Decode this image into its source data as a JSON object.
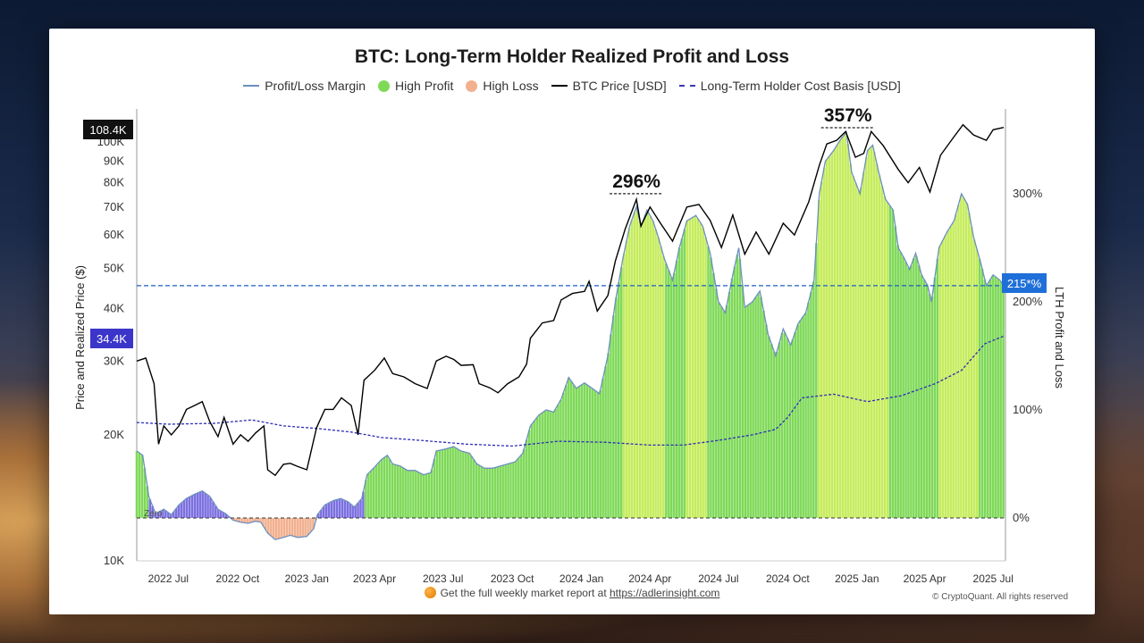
{
  "chart_data": {
    "type": "bar+line",
    "title": "BTC: Long-Term Holder Realized Profit and Loss",
    "legend": [
      "Profit/Loss Margin",
      "High Profit",
      "High Loss",
      "BTC Price [USD]",
      "Long-Term Holder Cost Basis [USD]"
    ],
    "colors": {
      "margin": "#6d8fbf",
      "high_profit": "#7ed957",
      "high_profit_light": "#c5ec5a",
      "high_loss": "#f2b08e",
      "low_margin": "#7b6fe0",
      "btc_price": "#000000",
      "cost_basis": "#2c2cb5",
      "threshold": "#1f5fbf"
    },
    "ylabel_left": "Price and Realized Price ($)",
    "ylabel_right": "LTH Profit and Loss",
    "left_scale": "log",
    "left_ylim": [
      10000,
      120000
    ],
    "left_ticks": [
      "10K",
      "20K",
      "30K",
      "40K",
      "50K",
      "60K",
      "70K",
      "80K",
      "90K",
      "100K"
    ],
    "right_ylim": [
      -35,
      375
    ],
    "right_ticks": [
      "0%",
      "100%",
      "200%",
      "300%"
    ],
    "x_ticks": [
      "2022 Jul",
      "2022 Oct",
      "2023 Jan",
      "2023 Apr",
      "2023 Jul",
      "2023 Oct",
      "2024 Jan",
      "2024 Apr",
      "2024 Jul",
      "2024 Oct",
      "2025 Jan",
      "2025 Apr",
      "2025 Jul"
    ],
    "x_range": [
      "2022-05-20",
      "2025-07-15"
    ],
    "price_badge": "108.4K",
    "cost_badge": "34.4K",
    "margin_badge": "215*%",
    "zero_label": "Zero",
    "threshold_pct": 215,
    "annotations": [
      {
        "text": "296%",
        "date": "2024-03-14",
        "value": 296
      },
      {
        "text": "357%",
        "date": "2024-12-20",
        "value": 357
      }
    ],
    "margin_series": [
      [
        "2022-05-20",
        62
      ],
      [
        "2022-05-28",
        58
      ],
      [
        "2022-06-05",
        20
      ],
      [
        "2022-06-14",
        4
      ],
      [
        "2022-06-25",
        8
      ],
      [
        "2022-07-05",
        3
      ],
      [
        "2022-07-15",
        12
      ],
      [
        "2022-07-25",
        18
      ],
      [
        "2022-08-05",
        22
      ],
      [
        "2022-08-15",
        25
      ],
      [
        "2022-08-25",
        20
      ],
      [
        "2022-09-05",
        8
      ],
      [
        "2022-09-15",
        4
      ],
      [
        "2022-09-25",
        -2
      ],
      [
        "2022-10-05",
        -4
      ],
      [
        "2022-10-15",
        -5
      ],
      [
        "2022-10-25",
        -3
      ],
      [
        "2022-11-01",
        -4
      ],
      [
        "2022-11-10",
        -14
      ],
      [
        "2022-11-20",
        -20
      ],
      [
        "2022-12-01",
        -18
      ],
      [
        "2022-12-10",
        -16
      ],
      [
        "2022-12-20",
        -18
      ],
      [
        "2023-01-01",
        -17
      ],
      [
        "2023-01-10",
        -10
      ],
      [
        "2023-01-15",
        3
      ],
      [
        "2023-01-25",
        12
      ],
      [
        "2023-02-05",
        16
      ],
      [
        "2023-02-15",
        18
      ],
      [
        "2023-02-25",
        15
      ],
      [
        "2023-03-05",
        10
      ],
      [
        "2023-03-15",
        18
      ],
      [
        "2023-03-22",
        40
      ],
      [
        "2023-04-01",
        47
      ],
      [
        "2023-04-10",
        54
      ],
      [
        "2023-04-18",
        58
      ],
      [
        "2023-04-25",
        50
      ],
      [
        "2023-05-05",
        48
      ],
      [
        "2023-05-15",
        44
      ],
      [
        "2023-05-25",
        44
      ],
      [
        "2023-06-05",
        40
      ],
      [
        "2023-06-15",
        42
      ],
      [
        "2023-06-22",
        62
      ],
      [
        "2023-07-05",
        64
      ],
      [
        "2023-07-15",
        66
      ],
      [
        "2023-07-25",
        62
      ],
      [
        "2023-08-05",
        60
      ],
      [
        "2023-08-15",
        50
      ],
      [
        "2023-08-25",
        46
      ],
      [
        "2023-09-05",
        46
      ],
      [
        "2023-09-15",
        48
      ],
      [
        "2023-09-25",
        50
      ],
      [
        "2023-10-05",
        52
      ],
      [
        "2023-10-15",
        60
      ],
      [
        "2023-10-25",
        85
      ],
      [
        "2023-11-05",
        95
      ],
      [
        "2023-11-15",
        100
      ],
      [
        "2023-11-25",
        98
      ],
      [
        "2023-12-05",
        110
      ],
      [
        "2023-12-15",
        130
      ],
      [
        "2023-12-25",
        120
      ],
      [
        "2024-01-05",
        125
      ],
      [
        "2024-01-15",
        120
      ],
      [
        "2024-01-25",
        115
      ],
      [
        "2024-02-05",
        150
      ],
      [
        "2024-02-15",
        200
      ],
      [
        "2024-02-25",
        240
      ],
      [
        "2024-03-05",
        270
      ],
      [
        "2024-03-14",
        288
      ],
      [
        "2024-03-20",
        270
      ],
      [
        "2024-03-28",
        285
      ],
      [
        "2024-04-05",
        275
      ],
      [
        "2024-04-12",
        260
      ],
      [
        "2024-04-20",
        240
      ],
      [
        "2024-05-01",
        220
      ],
      [
        "2024-05-10",
        250
      ],
      [
        "2024-05-20",
        275
      ],
      [
        "2024-06-01",
        280
      ],
      [
        "2024-06-10",
        270
      ],
      [
        "2024-06-20",
        245
      ],
      [
        "2024-07-01",
        200
      ],
      [
        "2024-07-10",
        190
      ],
      [
        "2024-07-20",
        225
      ],
      [
        "2024-07-28",
        250
      ],
      [
        "2024-08-05",
        195
      ],
      [
        "2024-08-15",
        200
      ],
      [
        "2024-08-25",
        210
      ],
      [
        "2024-09-05",
        170
      ],
      [
        "2024-09-15",
        150
      ],
      [
        "2024-09-25",
        175
      ],
      [
        "2024-10-05",
        160
      ],
      [
        "2024-10-15",
        180
      ],
      [
        "2024-10-25",
        190
      ],
      [
        "2024-11-05",
        220
      ],
      [
        "2024-11-12",
        300
      ],
      [
        "2024-11-20",
        330
      ],
      [
        "2024-12-01",
        340
      ],
      [
        "2024-12-10",
        350
      ],
      [
        "2024-12-18",
        357
      ],
      [
        "2024-12-25",
        320
      ],
      [
        "2025-01-05",
        300
      ],
      [
        "2025-01-15",
        340
      ],
      [
        "2025-01-22",
        345
      ],
      [
        "2025-01-30",
        320
      ],
      [
        "2025-02-08",
        295
      ],
      [
        "2025-02-18",
        285
      ],
      [
        "2025-02-25",
        250
      ],
      [
        "2025-03-05",
        240
      ],
      [
        "2025-03-12",
        230
      ],
      [
        "2025-03-20",
        245
      ],
      [
        "2025-03-28",
        225
      ],
      [
        "2025-04-05",
        215
      ],
      [
        "2025-04-10",
        200
      ],
      [
        "2025-04-20",
        250
      ],
      [
        "2025-05-01",
        265
      ],
      [
        "2025-05-10",
        275
      ],
      [
        "2025-05-20",
        300
      ],
      [
        "2025-05-28",
        290
      ],
      [
        "2025-06-05",
        260
      ],
      [
        "2025-06-15",
        235
      ],
      [
        "2025-06-22",
        215
      ],
      [
        "2025-07-01",
        225
      ],
      [
        "2025-07-10",
        220
      ],
      [
        "2025-07-15",
        215
      ]
    ],
    "btc_price_series": [
      [
        "2022-05-20",
        30000
      ],
      [
        "2022-06-01",
        30500
      ],
      [
        "2022-06-12",
        26500
      ],
      [
        "2022-06-18",
        19000
      ],
      [
        "2022-06-25",
        21000
      ],
      [
        "2022-07-05",
        20000
      ],
      [
        "2022-07-15",
        21000
      ],
      [
        "2022-07-25",
        23000
      ],
      [
        "2022-08-05",
        23500
      ],
      [
        "2022-08-15",
        24000
      ],
      [
        "2022-08-25",
        21500
      ],
      [
        "2022-09-05",
        19800
      ],
      [
        "2022-09-13",
        22000
      ],
      [
        "2022-09-25",
        19000
      ],
      [
        "2022-10-05",
        20000
      ],
      [
        "2022-10-15",
        19300
      ],
      [
        "2022-10-25",
        20200
      ],
      [
        "2022-11-05",
        21000
      ],
      [
        "2022-11-10",
        16500
      ],
      [
        "2022-11-20",
        16000
      ],
      [
        "2022-12-01",
        17000
      ],
      [
        "2022-12-10",
        17100
      ],
      [
        "2022-12-20",
        16800
      ],
      [
        "2023-01-01",
        16500
      ],
      [
        "2023-01-14",
        20800
      ],
      [
        "2023-01-25",
        23000
      ],
      [
        "2023-02-05",
        23000
      ],
      [
        "2023-02-16",
        24500
      ],
      [
        "2023-03-01",
        23500
      ],
      [
        "2023-03-10",
        20000
      ],
      [
        "2023-03-18",
        27000
      ],
      [
        "2023-04-01",
        28500
      ],
      [
        "2023-04-14",
        30500
      ],
      [
        "2023-04-25",
        28000
      ],
      [
        "2023-05-10",
        27500
      ],
      [
        "2023-05-25",
        26500
      ],
      [
        "2023-06-10",
        25800
      ],
      [
        "2023-06-22",
        30000
      ],
      [
        "2023-07-05",
        30800
      ],
      [
        "2023-07-15",
        30300
      ],
      [
        "2023-07-25",
        29300
      ],
      [
        "2023-08-10",
        29400
      ],
      [
        "2023-08-18",
        26500
      ],
      [
        "2023-09-01",
        25900
      ],
      [
        "2023-09-12",
        25200
      ],
      [
        "2023-09-25",
        26500
      ],
      [
        "2023-10-10",
        27500
      ],
      [
        "2023-10-20",
        29500
      ],
      [
        "2023-10-25",
        34000
      ],
      [
        "2023-11-10",
        37000
      ],
      [
        "2023-11-25",
        37500
      ],
      [
        "2023-12-05",
        42000
      ],
      [
        "2023-12-20",
        43500
      ],
      [
        "2024-01-05",
        44000
      ],
      [
        "2024-01-11",
        46500
      ],
      [
        "2024-01-22",
        39500
      ],
      [
        "2024-02-05",
        43000
      ],
      [
        "2024-02-15",
        52000
      ],
      [
        "2024-02-28",
        62000
      ],
      [
        "2024-03-14",
        73000
      ],
      [
        "2024-03-20",
        63000
      ],
      [
        "2024-04-01",
        70000
      ],
      [
        "2024-04-15",
        64000
      ],
      [
        "2024-05-01",
        58000
      ],
      [
        "2024-05-20",
        70000
      ],
      [
        "2024-06-05",
        71000
      ],
      [
        "2024-06-20",
        65000
      ],
      [
        "2024-07-05",
        56000
      ],
      [
        "2024-07-20",
        67000
      ],
      [
        "2024-08-05",
        54000
      ],
      [
        "2024-08-20",
        61000
      ],
      [
        "2024-09-06",
        54000
      ],
      [
        "2024-09-25",
        64000
      ],
      [
        "2024-10-10",
        60000
      ],
      [
        "2024-10-29",
        72000
      ],
      [
        "2024-11-12",
        88000
      ],
      [
        "2024-11-22",
        99000
      ],
      [
        "2024-12-05",
        101000
      ],
      [
        "2024-12-17",
        106000
      ],
      [
        "2024-12-30",
        92000
      ],
      [
        "2025-01-10",
        94000
      ],
      [
        "2025-01-20",
        106000
      ],
      [
        "2025-02-05",
        98000
      ],
      [
        "2025-02-25",
        86000
      ],
      [
        "2025-03-10",
        80000
      ],
      [
        "2025-03-25",
        87000
      ],
      [
        "2025-04-08",
        76000
      ],
      [
        "2025-04-22",
        93000
      ],
      [
        "2025-05-10",
        103000
      ],
      [
        "2025-05-22",
        110000
      ],
      [
        "2025-06-05",
        104000
      ],
      [
        "2025-06-22",
        101000
      ],
      [
        "2025-07-01",
        107000
      ],
      [
        "2025-07-15",
        108400
      ]
    ],
    "cost_basis_series": [
      [
        "2022-05-20",
        21400
      ],
      [
        "2022-07-01",
        21200
      ],
      [
        "2022-09-01",
        21300
      ],
      [
        "2022-10-20",
        21700
      ],
      [
        "2022-12-01",
        21000
      ],
      [
        "2023-01-15",
        20700
      ],
      [
        "2023-03-01",
        20300
      ],
      [
        "2023-04-10",
        19700
      ],
      [
        "2023-06-01",
        19400
      ],
      [
        "2023-08-01",
        19000
      ],
      [
        "2023-10-01",
        18800
      ],
      [
        "2023-12-01",
        19300
      ],
      [
        "2024-02-01",
        19200
      ],
      [
        "2024-04-01",
        18900
      ],
      [
        "2024-05-15",
        18900
      ],
      [
        "2024-07-01",
        19400
      ],
      [
        "2024-08-15",
        20000
      ],
      [
        "2024-09-15",
        20600
      ],
      [
        "2024-10-01",
        22000
      ],
      [
        "2024-10-20",
        24500
      ],
      [
        "2024-12-01",
        25000
      ],
      [
        "2025-01-15",
        24000
      ],
      [
        "2025-03-01",
        24800
      ],
      [
        "2025-04-15",
        26500
      ],
      [
        "2025-05-20",
        28500
      ],
      [
        "2025-06-20",
        33000
      ],
      [
        "2025-07-15",
        34400
      ]
    ]
  },
  "footer": {
    "cta": "Get the full weekly market report at ",
    "link": "https://adlerinsight.com",
    "copyright": "© CryptoQuant. All rights reserved"
  }
}
